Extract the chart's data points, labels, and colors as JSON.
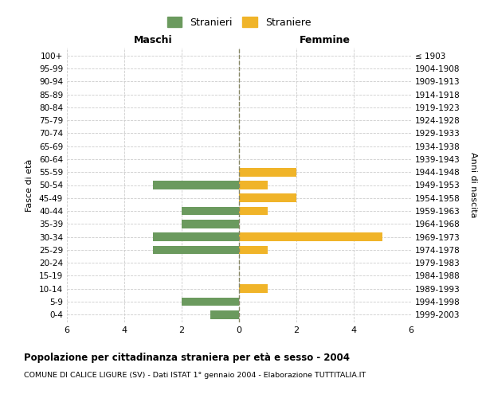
{
  "age_groups": [
    "0-4",
    "5-9",
    "10-14",
    "15-19",
    "20-24",
    "25-29",
    "30-34",
    "35-39",
    "40-44",
    "45-49",
    "50-54",
    "55-59",
    "60-64",
    "65-69",
    "70-74",
    "75-79",
    "80-84",
    "85-89",
    "90-94",
    "95-99",
    "100+"
  ],
  "birth_years": [
    "1999-2003",
    "1994-1998",
    "1989-1993",
    "1984-1988",
    "1979-1983",
    "1974-1978",
    "1969-1973",
    "1964-1968",
    "1959-1963",
    "1954-1958",
    "1949-1953",
    "1944-1948",
    "1939-1943",
    "1934-1938",
    "1929-1933",
    "1924-1928",
    "1919-1923",
    "1914-1918",
    "1909-1913",
    "1904-1908",
    "≤ 1903"
  ],
  "maschi_stranieri": [
    1,
    2,
    0,
    0,
    0,
    3,
    3,
    2,
    2,
    0,
    3,
    0,
    0,
    0,
    0,
    0,
    0,
    0,
    0,
    0,
    0
  ],
  "femmine_straniere": [
    0,
    0,
    1,
    0,
    0,
    1,
    5,
    0,
    1,
    2,
    1,
    2,
    0,
    0,
    0,
    0,
    0,
    0,
    0,
    0,
    0
  ],
  "color_maschi": "#6b9a5e",
  "color_femmine": "#f0b429",
  "title": "Popolazione per cittadinanza straniera per età e sesso - 2004",
  "subtitle": "COMUNE DI CALICE LIGURE (SV) - Dati ISTAT 1° gennaio 2004 - Elaborazione TUTTITALIA.IT",
  "label_left": "Maschi",
  "label_right": "Femmine",
  "ylabel_left": "Fasce di età",
  "ylabel_right": "Anni di nascita",
  "legend_maschi": "Stranieri",
  "legend_femmine": "Straniere",
  "xlim": 6,
  "background_color": "#ffffff",
  "grid_color": "#cccccc"
}
